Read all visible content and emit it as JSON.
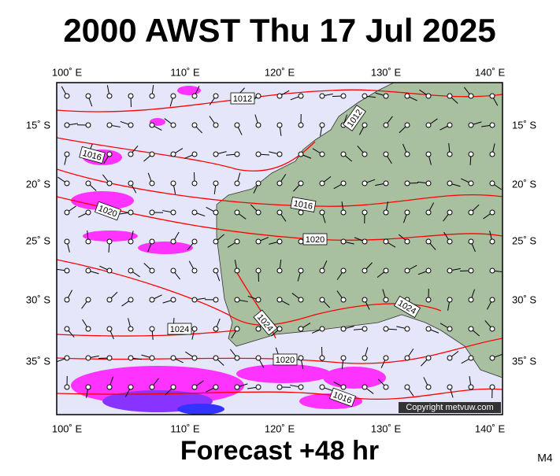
{
  "header": {
    "title": "2000 AWST Thu 17 Jul 2025"
  },
  "map": {
    "lon_labels": [
      "100˚ E",
      "110˚ E",
      "120˚ E",
      "130˚ E",
      "140˚ E"
    ],
    "lat_labels": [
      "15˚ S",
      "20˚ S",
      "25˚ S",
      "30˚ S",
      "35˚ S"
    ],
    "isobar_labels": [
      "1012",
      "1012",
      "1016",
      "1020",
      "1016",
      "1020",
      "1024",
      "1024",
      "1020",
      "1024",
      "1016"
    ],
    "copyright": "Copyright metvuw.com"
  },
  "footer": {
    "forecast": "Forecast +48 hr",
    "model": "M4"
  }
}
